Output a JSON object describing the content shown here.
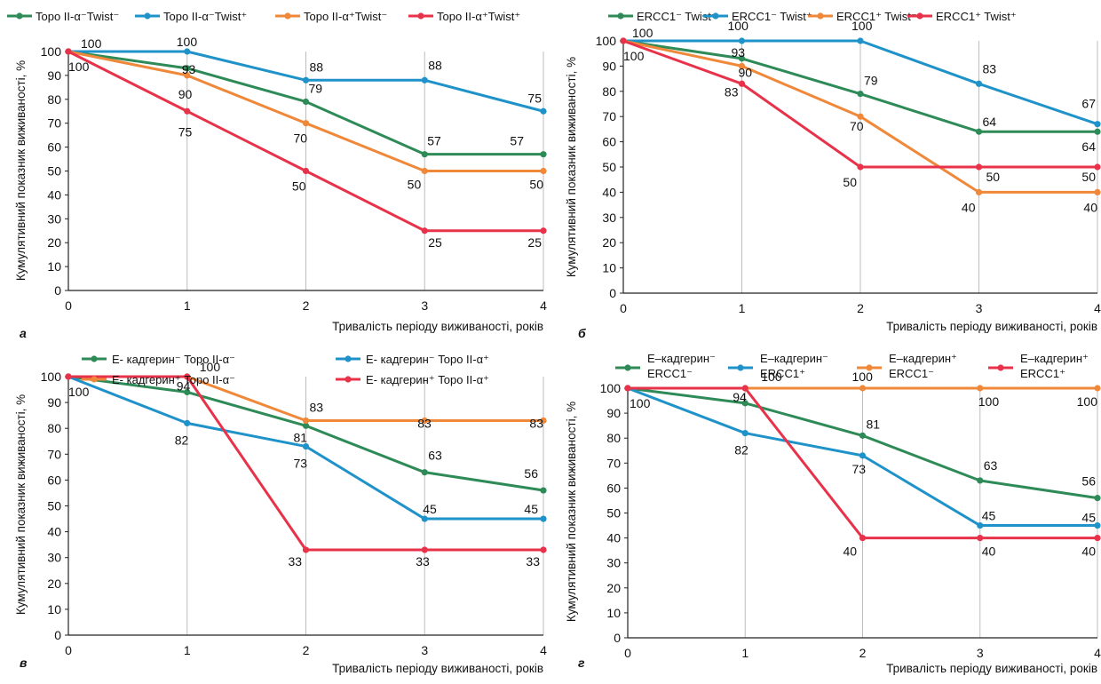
{
  "colors": {
    "green": "#2e8b57",
    "blue": "#1f93c9",
    "orange": "#f0883a",
    "red": "#e8324a",
    "grid": "#bdbdbd",
    "axis": "#222222"
  },
  "chart_data": [
    {
      "panel_letter": "а",
      "type": "line",
      "xlabel": "Тривалість періоду виживаності, років",
      "ylabel": "Кумулятивний показник виживаності, %",
      "x": [
        0,
        1,
        2,
        3,
        4
      ],
      "xticks": [
        "0",
        "1",
        "2",
        "3",
        "4"
      ],
      "yticks": [
        "0",
        "10",
        "20",
        "30",
        "40",
        "50",
        "60",
        "70",
        "80",
        "90",
        "100"
      ],
      "ylim": [
        0,
        100
      ],
      "grid": "vertical",
      "legend": "top",
      "series": [
        {
          "name": "Topo II-α⁻Twist⁻",
          "color": "green",
          "values": [
            100,
            93,
            79,
            57,
            57
          ]
        },
        {
          "name": "Topo II-α⁻Twist⁺",
          "color": "blue",
          "values": [
            100,
            100,
            88,
            88,
            75
          ]
        },
        {
          "name": "Topo II-α⁺Twist⁻",
          "color": "orange",
          "values": [
            100,
            90,
            70,
            50,
            50
          ]
        },
        {
          "name": "Topo II-α⁺Twist⁺",
          "color": "red",
          "values": [
            100,
            75,
            50,
            25,
            25
          ]
        }
      ]
    },
    {
      "panel_letter": "б",
      "type": "line",
      "xlabel": "Тривалість періоду виживаності, років",
      "ylabel": "Кумулятивний показник виживаності, %",
      "x": [
        0,
        1,
        2,
        3,
        4
      ],
      "xticks": [
        "0",
        "1",
        "2",
        "3",
        "4"
      ],
      "yticks": [
        "0",
        "10",
        "20",
        "30",
        "40",
        "50",
        "60",
        "70",
        "80",
        "90",
        "100"
      ],
      "ylim": [
        0,
        100
      ],
      "grid": "vertical",
      "legend": "top",
      "series": [
        {
          "name": "ERCC1⁻ Twist⁻",
          "color": "green",
          "values": [
            100,
            93,
            79,
            64,
            64
          ]
        },
        {
          "name": "ERCC1⁻ Twist⁺",
          "color": "blue",
          "values": [
            100,
            100,
            100,
            83,
            67
          ]
        },
        {
          "name": "ERCC1⁺ Twist⁻",
          "color": "orange",
          "values": [
            100,
            90,
            70,
            40,
            40
          ]
        },
        {
          "name": "ERCC1⁺ Twist⁺",
          "color": "red",
          "values": [
            100,
            83,
            50,
            50,
            50
          ]
        }
      ]
    },
    {
      "panel_letter": "в",
      "type": "line",
      "xlabel": "Тривалість періоду виживаності, років",
      "ylabel": "Кумулятивний показник виживаності, %",
      "x": [
        0,
        1,
        2,
        3,
        4
      ],
      "xticks": [
        "0",
        "1",
        "2",
        "3",
        "4"
      ],
      "yticks": [
        "0",
        "10",
        "20",
        "30",
        "40",
        "50",
        "60",
        "70",
        "80",
        "90",
        "100"
      ],
      "ylim": [
        0,
        100
      ],
      "grid": "vertical",
      "legend": "top",
      "series": [
        {
          "name": "E- кадгерин⁻ Topo II-α⁻",
          "color": "green",
          "values": [
            100,
            94,
            81,
            63,
            56
          ]
        },
        {
          "name": "E- кадгерин⁻ Topo II-α⁺",
          "color": "blue",
          "values": [
            100,
            82,
            73,
            45,
            45
          ]
        },
        {
          "name": "E- кадгерин⁺ Topo II-α⁻",
          "color": "orange",
          "values": [
            100,
            100,
            83,
            83,
            83
          ]
        },
        {
          "name": "E- кадгерин⁺ Topo II-α⁺",
          "color": "red",
          "values": [
            100,
            100,
            33,
            33,
            33
          ]
        }
      ]
    },
    {
      "panel_letter": "г",
      "type": "line",
      "xlabel": "Тривалість періоду виживаності, років",
      "ylabel": "Кумулятивний показник виживаності, %",
      "x": [
        0,
        1,
        2,
        3,
        4
      ],
      "xticks": [
        "0",
        "1",
        "2",
        "3",
        "4"
      ],
      "yticks": [
        "0",
        "10",
        "20",
        "30",
        "40",
        "50",
        "60",
        "70",
        "80",
        "90",
        "100"
      ],
      "ylim": [
        0,
        100
      ],
      "grid": "vertical",
      "legend": "top",
      "series": [
        {
          "name": "E–кадгерин⁻ ERCC1⁻",
          "color": "green",
          "values": [
            100,
            94,
            81,
            63,
            56
          ]
        },
        {
          "name": "E–кадгерин⁻ ERCC1⁺",
          "color": "blue",
          "values": [
            100,
            82,
            73,
            45,
            45
          ]
        },
        {
          "name": "E–кадгерин⁺ ERCC1⁻",
          "color": "orange",
          "values": [
            100,
            100,
            100,
            100,
            100
          ]
        },
        {
          "name": "E–кадгерин⁺ ERCC1⁺",
          "color": "red",
          "values": [
            100,
            100,
            40,
            40,
            40
          ]
        }
      ]
    }
  ]
}
